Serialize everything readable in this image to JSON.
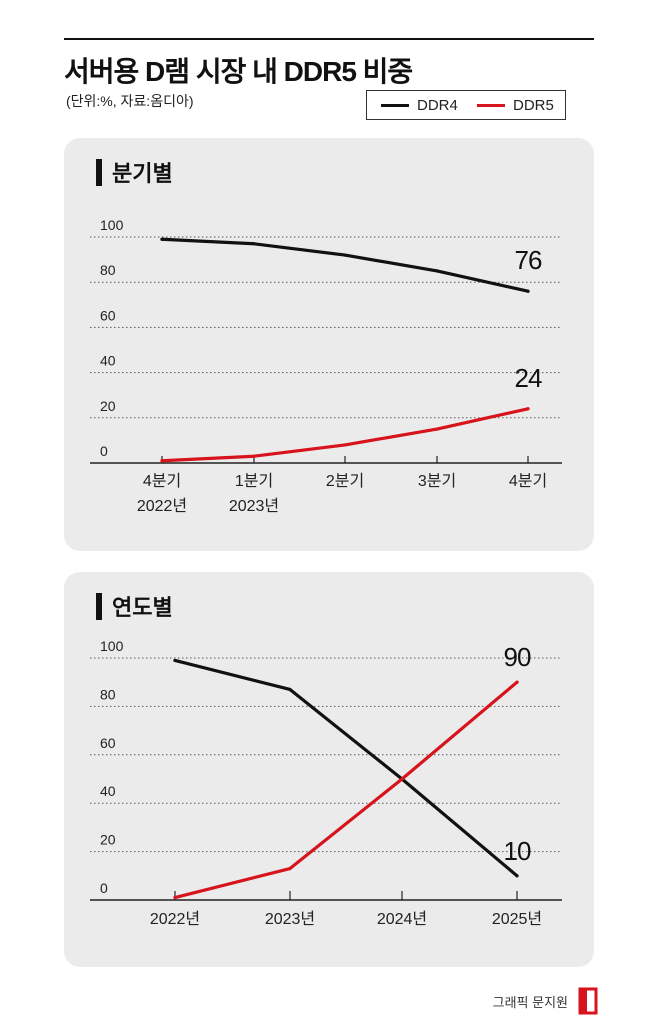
{
  "title": "서버용 D램 시장 내 DDR5 비중",
  "unit_note": "(단위:%, 자료:옴디아)",
  "legend": [
    {
      "name": "DDR4",
      "color": "#111111"
    },
    {
      "name": "DDR5",
      "color": "#d7131c"
    }
  ],
  "credit": "그래픽 문지원",
  "chart_data": [
    {
      "type": "line",
      "title": "분기별",
      "ylim": [
        0,
        100
      ],
      "y_ticks": [
        "100",
        "80",
        "60",
        "40",
        "20",
        "0"
      ],
      "categories": [
        [
          "4분기",
          "2022년"
        ],
        [
          "1분기",
          "2023년"
        ],
        [
          "2분기",
          ""
        ],
        [
          "3분기",
          ""
        ],
        [
          "4분기",
          ""
        ]
      ],
      "series": [
        {
          "name": "DDR4",
          "color": "#111111",
          "values": [
            99,
            97,
            92,
            85,
            76
          ],
          "end_label": "76"
        },
        {
          "name": "DDR5",
          "color": "#d7131c",
          "values": [
            1,
            3,
            8,
            15,
            24
          ],
          "end_label": "24"
        }
      ]
    },
    {
      "type": "line",
      "title": "연도별",
      "ylim": [
        0,
        100
      ],
      "y_ticks": [
        "100",
        "80",
        "60",
        "40",
        "20",
        "0"
      ],
      "categories": [
        [
          "2022년",
          ""
        ],
        [
          "2023년",
          ""
        ],
        [
          "2024년",
          ""
        ],
        [
          "2025년",
          ""
        ]
      ],
      "series": [
        {
          "name": "DDR4",
          "color": "#111111",
          "values": [
            99,
            87,
            50,
            10
          ],
          "end_label": "10"
        },
        {
          "name": "DDR5",
          "color": "#d7131c",
          "values": [
            1,
            13,
            50,
            90
          ],
          "end_label": "90"
        }
      ]
    }
  ]
}
